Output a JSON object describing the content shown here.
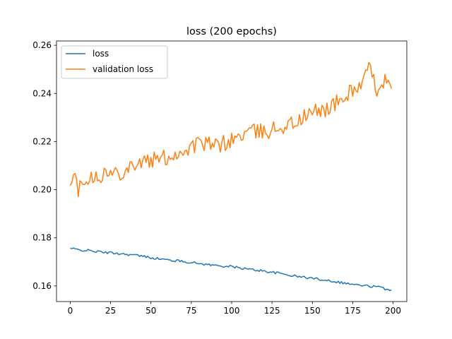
{
  "chart_data": {
    "type": "line",
    "title": "loss (200 epochs)",
    "xlabel": "",
    "ylabel": "",
    "xlim": [
      -8.5,
      208.5
    ],
    "ylim": [
      0.1535,
      0.2618
    ],
    "xticks": [
      0,
      25,
      50,
      75,
      100,
      125,
      150,
      175,
      200
    ],
    "yticks": [
      0.16,
      0.18,
      0.2,
      0.22,
      0.24,
      0.26
    ],
    "ytick_labels": [
      "0.16",
      "0.18",
      "0.20",
      "0.22",
      "0.24",
      "0.26"
    ],
    "grid": false,
    "legend_position": "upper-left",
    "series": [
      {
        "name": "loss",
        "color": "#1f77b4",
        "keypoints": [
          [
            0,
            0.1756
          ],
          [
            5,
            0.175
          ],
          [
            10,
            0.1748
          ],
          [
            20,
            0.174
          ],
          [
            30,
            0.1735
          ],
          [
            40,
            0.1728
          ],
          [
            50,
            0.1718
          ],
          [
            60,
            0.1708
          ],
          [
            70,
            0.1702
          ],
          [
            80,
            0.1693
          ],
          [
            90,
            0.1685
          ],
          [
            100,
            0.168
          ],
          [
            110,
            0.167
          ],
          [
            120,
            0.1662
          ],
          [
            130,
            0.1652
          ],
          [
            140,
            0.164
          ],
          [
            150,
            0.1632
          ],
          [
            160,
            0.1623
          ],
          [
            170,
            0.1612
          ],
          [
            180,
            0.1602
          ],
          [
            190,
            0.1597
          ],
          [
            195,
            0.1588
          ],
          [
            199,
            0.1584
          ]
        ],
        "noise": 0.0005
      },
      {
        "name": "validation loss",
        "color": "#ff7f0e",
        "keypoints": [
          [
            0,
            0.2005
          ],
          [
            3,
            0.2055
          ],
          [
            5,
            0.2005
          ],
          [
            10,
            0.2055
          ],
          [
            20,
            0.2065
          ],
          [
            30,
            0.207
          ],
          [
            40,
            0.211
          ],
          [
            50,
            0.212
          ],
          [
            60,
            0.2135
          ],
          [
            70,
            0.216
          ],
          [
            80,
            0.2195
          ],
          [
            90,
            0.218
          ],
          [
            100,
            0.2205
          ],
          [
            110,
            0.224
          ],
          [
            120,
            0.224
          ],
          [
            130,
            0.226
          ],
          [
            140,
            0.228
          ],
          [
            150,
            0.232
          ],
          [
            160,
            0.234
          ],
          [
            170,
            0.238
          ],
          [
            175,
            0.242
          ],
          [
            180,
            0.243
          ],
          [
            185,
            0.25
          ],
          [
            190,
            0.242
          ],
          [
            195,
            0.246
          ],
          [
            199,
            0.24
          ]
        ],
        "noise": 0.0035
      }
    ]
  }
}
